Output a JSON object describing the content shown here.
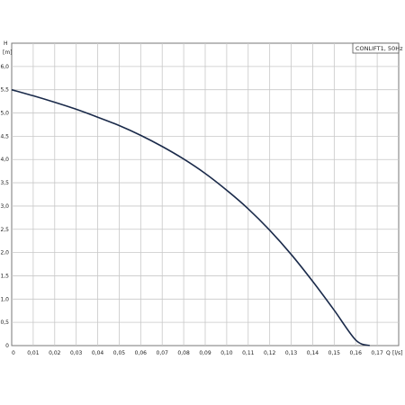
{
  "chart_data": {
    "type": "line",
    "title": "",
    "legend": {
      "label": "CONLIFT1, 50Hz",
      "placement": "top-right"
    },
    "xlabel": "",
    "ylabel": "",
    "y_axis_label": {
      "symbol": "H",
      "unit": "[m]"
    },
    "x_axis_label": {
      "symbol": "Q",
      "unit": "[l/s]"
    },
    "grid": true,
    "xlim": [
      0,
      0.18
    ],
    "ylim": [
      0,
      6.5
    ],
    "x_ticks": [
      "0",
      "0,01",
      "0,02",
      "0,03",
      "0,04",
      "0,05",
      "0,06",
      "0,07",
      "0,08",
      "0,09",
      "0,10",
      "0,11",
      "0,12",
      "0,13",
      "0,14",
      "0,15",
      "0,16",
      "0,17"
    ],
    "y_ticks": [
      "0",
      "0,5",
      "1,0",
      "1,5",
      "2,0",
      "2,5",
      "3,0",
      "3,5",
      "4,0",
      "4,5",
      "5,0",
      "5,5",
      "6,0"
    ],
    "series": [
      {
        "name": "CONLIFT1, 50Hz",
        "color": "#1a2a4a",
        "x": [
          0,
          0.01,
          0.02,
          0.03,
          0.04,
          0.05,
          0.06,
          0.07,
          0.08,
          0.09,
          0.1,
          0.11,
          0.12,
          0.13,
          0.14,
          0.15,
          0.16,
          0.1665
        ],
        "y": [
          5.5,
          5.37,
          5.23,
          5.08,
          4.91,
          4.73,
          4.52,
          4.28,
          4.01,
          3.7,
          3.34,
          2.94,
          2.48,
          1.96,
          1.38,
          0.76,
          0.12,
          0.0
        ]
      }
    ]
  }
}
